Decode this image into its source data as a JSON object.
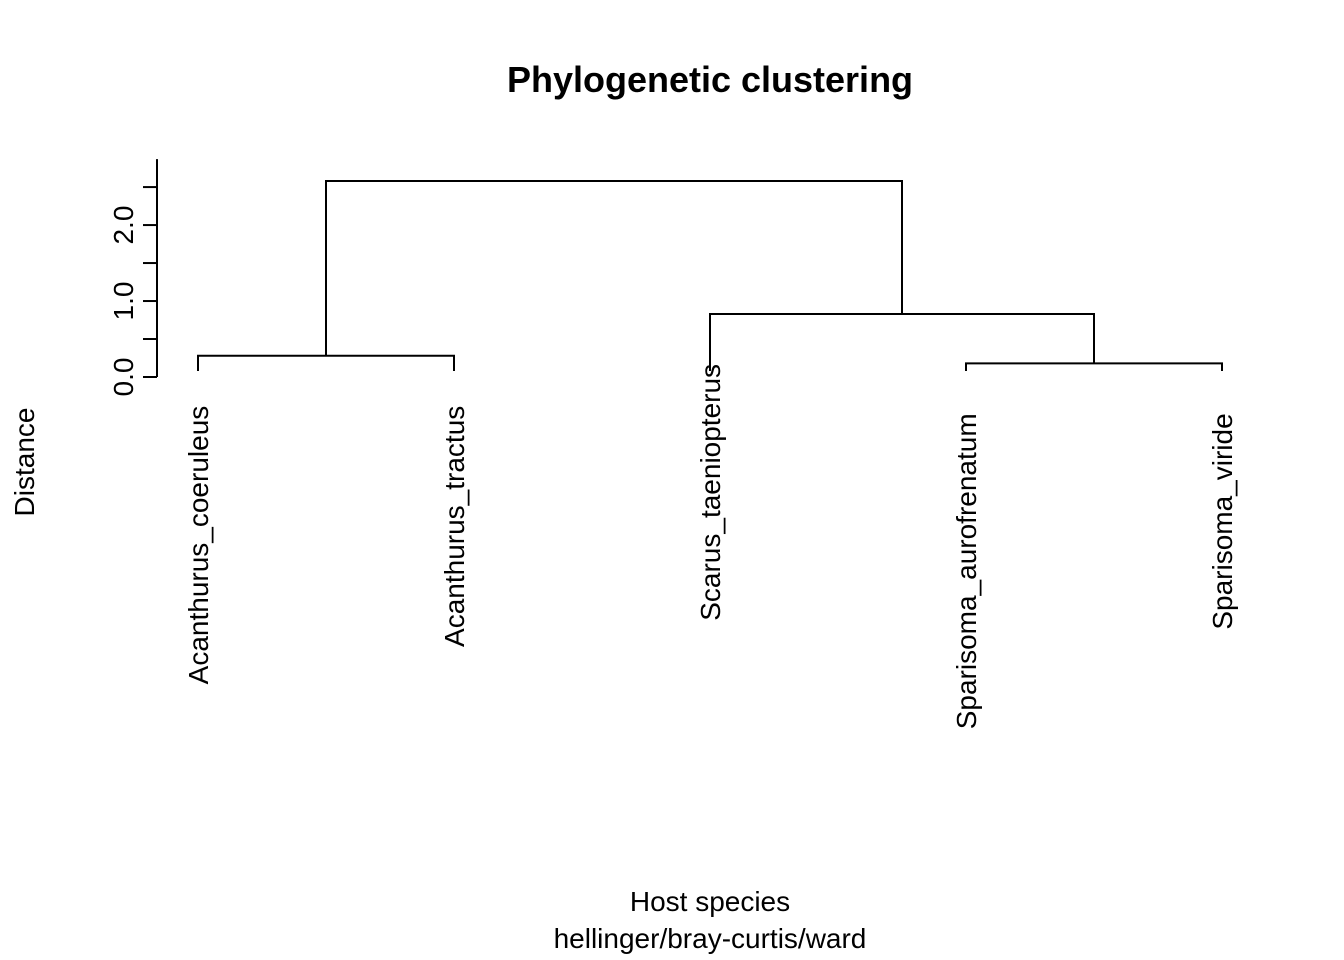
{
  "chart_data": {
    "type": "dendrogram",
    "title": "Phylogenetic clustering",
    "xlabel": "Host species",
    "subtitle": "hellinger/bray-curtis/ward",
    "ylabel": "Distance",
    "ylim": [
      0,
      2.5
    ],
    "y_ticks": [
      0,
      0.5,
      1,
      1.5,
      2,
      2.5
    ],
    "y_tick_labels": [
      {
        "value": 0,
        "label": "0.0"
      },
      {
        "value": 1,
        "label": "1.0"
      },
      {
        "value": 2,
        "label": "2.0"
      }
    ],
    "leaves": [
      "Acanthurus_coeruleus",
      "Acanthurus_tractus",
      "Scarus_taeniopterus",
      "Sparisoma_aurofrenatum",
      "Sparisoma_viride"
    ],
    "merges": [
      {
        "left": "leaf:0",
        "right": "leaf:1",
        "height": 0.28
      },
      {
        "left": "leaf:3",
        "right": "leaf:4",
        "height": 0.18
      },
      {
        "left": "leaf:2",
        "right": "node:1",
        "height": 0.83
      },
      {
        "left": "node:0",
        "right": "node:2",
        "height": 2.58
      }
    ],
    "line_color": "#000000"
  }
}
